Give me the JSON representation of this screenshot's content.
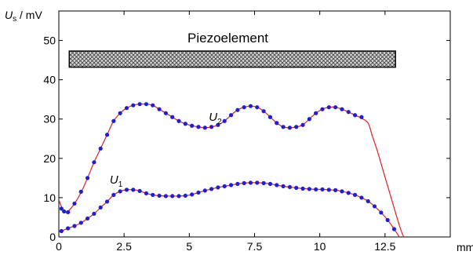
{
  "chart_data": {
    "type": "scatter",
    "title": "",
    "xlabel": "mm",
    "ylabel": {
      "symbol": "U",
      "subscript": "s",
      "unit": " / mV"
    },
    "xlim": [
      0,
      15
    ],
    "ylim": [
      0,
      57.5
    ],
    "x_ticks": [
      0,
      2.5,
      5,
      7.5,
      10,
      12.5
    ],
    "x_tick_labels": [
      "0",
      "2.5",
      "5",
      "7.5",
      "10",
      "12.5"
    ],
    "y_ticks": [
      0,
      10,
      20,
      30,
      40,
      50
    ],
    "y_tick_labels": [
      "0",
      "10",
      "20",
      "30",
      "40",
      "50"
    ],
    "grid": false,
    "annotations": {
      "element_label": "Piezoelement",
      "element_bar": {
        "x_start": 0.4,
        "x_end": 12.9,
        "y_low": 43.2,
        "y_high": 47.3,
        "pattern": "crosshatch"
      }
    },
    "colors": {
      "points": "#1f1fd0",
      "fit": "#e02020",
      "axes": "#000000",
      "hatch": "#444444"
    },
    "series": [
      {
        "name": "U2",
        "label": {
          "symbol": "U",
          "subscript": "2"
        },
        "label_position": [
          5.75,
          29.5
        ],
        "x": [
          0.1,
          0.2,
          0.35,
          0.6,
          0.85,
          1.1,
          1.35,
          1.6,
          1.85,
          2.1,
          2.35,
          2.6,
          2.85,
          3.1,
          3.35,
          3.6,
          3.85,
          4.1,
          4.35,
          4.6,
          4.85,
          5.1,
          5.35,
          5.6,
          5.85,
          6.1,
          6.35,
          6.6,
          6.85,
          7.1,
          7.35,
          7.6,
          7.85,
          8.1,
          8.35,
          8.6,
          8.85,
          9.1,
          9.35,
          9.6,
          9.85,
          10.1,
          10.35,
          10.6,
          10.85,
          11.1,
          11.35,
          11.6
        ],
        "values": [
          7.2,
          6.5,
          6.3,
          8.5,
          11.5,
          15.0,
          19.0,
          22.5,
          26.0,
          29.5,
          31.5,
          32.8,
          33.5,
          33.8,
          33.8,
          33.5,
          32.5,
          31.5,
          30.5,
          29.5,
          28.8,
          28.3,
          28.0,
          27.8,
          28.0,
          28.5,
          29.5,
          31.0,
          32.3,
          33.0,
          33.3,
          33.0,
          32.0,
          30.5,
          29.0,
          28.0,
          27.8,
          28.0,
          28.5,
          30.0,
          31.5,
          32.5,
          33.0,
          33.0,
          32.5,
          31.8,
          31.0,
          30.5
        ]
      },
      {
        "name": "U1",
        "label": {
          "symbol": "U",
          "subscript": "1"
        },
        "label_position": [
          1.95,
          13.6
        ],
        "x": [
          0.1,
          0.35,
          0.6,
          0.85,
          1.1,
          1.35,
          1.6,
          1.85,
          2.1,
          2.35,
          2.6,
          2.85,
          3.1,
          3.35,
          3.6,
          3.85,
          4.1,
          4.35,
          4.6,
          4.85,
          5.1,
          5.35,
          5.6,
          5.85,
          6.1,
          6.35,
          6.6,
          6.85,
          7.1,
          7.35,
          7.6,
          7.85,
          8.1,
          8.35,
          8.6,
          8.85,
          9.1,
          9.35,
          9.6,
          9.85,
          10.1,
          10.35,
          10.6,
          10.85,
          11.1,
          11.35,
          11.6,
          11.85,
          12.1,
          12.35,
          12.6,
          12.85
        ],
        "values": [
          1.5,
          2.2,
          2.8,
          3.6,
          4.7,
          5.9,
          7.5,
          9.0,
          10.7,
          11.6,
          12.0,
          12.0,
          11.7,
          11.1,
          10.7,
          10.5,
          10.4,
          10.4,
          10.4,
          10.5,
          10.8,
          11.3,
          11.8,
          12.2,
          12.6,
          12.9,
          13.2,
          13.5,
          13.7,
          13.8,
          13.8,
          13.7,
          13.5,
          13.2,
          12.9,
          12.7,
          12.5,
          12.3,
          12.2,
          12.1,
          12.1,
          12.0,
          11.9,
          11.6,
          11.2,
          10.7,
          10.0,
          9.1,
          7.8,
          6.2,
          4.3,
          2.0
        ]
      }
    ],
    "fits": [
      {
        "name": "U2-fit",
        "x": [
          -0.05,
          0.05,
          0.15,
          0.25,
          0.35,
          0.55,
          0.85,
          1.1,
          1.35,
          1.6,
          1.85,
          2.1,
          2.35,
          2.6,
          2.85,
          3.1,
          3.35,
          3.6,
          3.85,
          4.1,
          4.35,
          4.6,
          4.85,
          5.1,
          5.35,
          5.6,
          5.85,
          6.1,
          6.35,
          6.6,
          6.85,
          7.1,
          7.35,
          7.6,
          7.85,
          8.1,
          8.35,
          8.6,
          8.85,
          9.1,
          9.35,
          9.6,
          9.85,
          10.1,
          10.35,
          10.6,
          10.85,
          11.1,
          11.35,
          11.6,
          11.85,
          12.0,
          12.2,
          12.4,
          12.6,
          12.8,
          13.0,
          13.15,
          13.3
        ],
        "values": [
          10.5,
          8.5,
          7.0,
          6.3,
          6.5,
          8.0,
          11.3,
          15.0,
          19.0,
          22.5,
          26.0,
          29.5,
          31.5,
          32.8,
          33.5,
          33.8,
          33.8,
          33.5,
          32.5,
          31.5,
          30.5,
          29.5,
          28.8,
          28.3,
          28.0,
          27.8,
          28.0,
          28.5,
          29.5,
          31.0,
          32.3,
          33.0,
          33.3,
          33.0,
          32.0,
          30.5,
          29.0,
          28.0,
          27.8,
          28.0,
          28.5,
          30.0,
          31.5,
          32.5,
          33.0,
          33.0,
          32.5,
          31.8,
          31.0,
          30.2,
          29.0,
          26.0,
          22.0,
          17.5,
          13.0,
          8.5,
          4.0,
          1.0,
          -1.0
        ]
      },
      {
        "name": "U1-fit",
        "x": [
          0.0,
          0.1,
          0.35,
          0.6,
          0.85,
          1.1,
          1.35,
          1.6,
          1.85,
          2.1,
          2.35,
          2.6,
          2.85,
          3.1,
          3.35,
          3.6,
          3.85,
          4.1,
          4.35,
          4.6,
          4.85,
          5.1,
          5.35,
          5.6,
          5.85,
          6.1,
          6.35,
          6.6,
          6.85,
          7.1,
          7.35,
          7.6,
          7.85,
          8.1,
          8.35,
          8.6,
          8.85,
          9.1,
          9.35,
          9.6,
          9.85,
          10.1,
          10.35,
          10.6,
          10.85,
          11.1,
          11.35,
          11.6,
          11.85,
          12.1,
          12.35,
          12.6,
          12.85,
          13.0,
          13.1,
          13.2
        ],
        "values": [
          1.2,
          1.5,
          2.2,
          2.8,
          3.6,
          4.7,
          5.9,
          7.5,
          9.0,
          10.7,
          11.6,
          12.0,
          12.0,
          11.7,
          11.1,
          10.7,
          10.5,
          10.4,
          10.4,
          10.4,
          10.5,
          10.8,
          11.3,
          11.8,
          12.2,
          12.6,
          12.9,
          13.2,
          13.5,
          13.7,
          13.8,
          13.8,
          13.7,
          13.5,
          13.2,
          12.9,
          12.7,
          12.5,
          12.3,
          12.2,
          12.1,
          12.1,
          12.0,
          11.9,
          11.6,
          11.2,
          10.7,
          10.0,
          9.1,
          7.8,
          6.2,
          4.3,
          2.0,
          0.5,
          -0.5,
          -1.0
        ]
      }
    ]
  }
}
